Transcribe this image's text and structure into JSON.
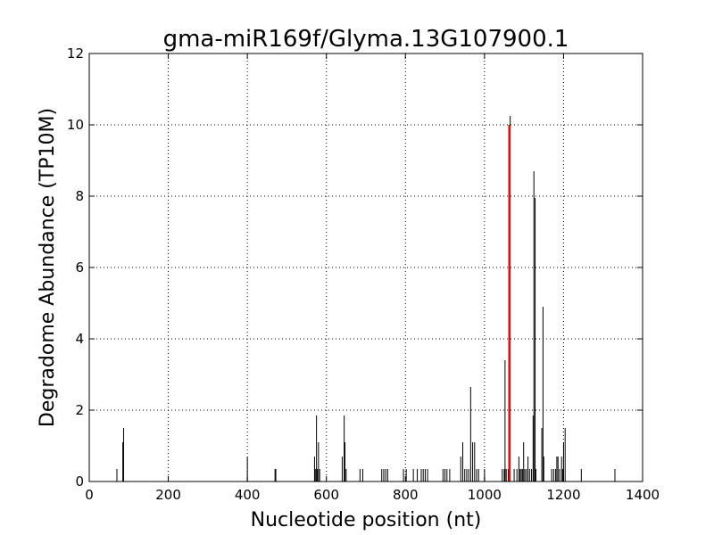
{
  "chart_data": {
    "type": "bar",
    "title": "gma-miR169f/Glyma.13G107900.1",
    "xlabel": "Nucleotide position (nt)",
    "ylabel": "Degradome Abundance (TP10M)",
    "xlim": [
      0,
      1400
    ],
    "ylim": [
      0,
      12
    ],
    "xticks": [
      0,
      200,
      400,
      600,
      800,
      1000,
      1200,
      1400
    ],
    "yticks": [
      0,
      2,
      4,
      6,
      8,
      10,
      12
    ],
    "grid": true,
    "bar_color": "#000000",
    "highlight_color": "#ff0000",
    "series": [
      {
        "x": [
          70,
          85,
          87,
          400,
          470,
          472,
          570,
          572,
          575,
          577,
          580,
          583,
          640,
          645,
          647,
          650,
          685,
          692,
          740,
          745,
          750,
          755,
          795,
          802,
          820,
          830,
          840,
          845,
          850,
          856,
          895,
          900,
          905,
          912,
          940,
          945,
          950,
          955,
          960,
          965,
          970,
          975,
          980,
          985,
          1000,
          1045,
          1050,
          1052,
          1055,
          1060,
          1065,
          1075,
          1082,
          1087,
          1090,
          1093,
          1096,
          1099,
          1102,
          1106,
          1110,
          1114,
          1119,
          1123,
          1125,
          1128,
          1130,
          1145,
          1148,
          1150,
          1170,
          1175,
          1180,
          1183,
          1186,
          1190,
          1195,
          1198,
          1200,
          1204,
          1245,
          1330
        ],
        "values": [
          0.35,
          1.1,
          1.5,
          0.7,
          0.35,
          0.35,
          0.7,
          0.35,
          1.85,
          0.35,
          1.1,
          0.35,
          0.7,
          1.85,
          1.1,
          0.35,
          0.35,
          0.35,
          0.35,
          0.35,
          0.35,
          0.35,
          0.35,
          0.35,
          0.35,
          0.35,
          0.35,
          0.35,
          0.35,
          0.35,
          0.35,
          0.35,
          0.35,
          0.35,
          0.7,
          1.1,
          0.35,
          0.35,
          0.35,
          2.65,
          1.1,
          1.1,
          0.35,
          0.35,
          0.35,
          0.35,
          0.35,
          3.4,
          0.35,
          0.35,
          10.25,
          0.35,
          0.35,
          0.7,
          0.35,
          0.35,
          0.35,
          1.1,
          0.35,
          0.35,
          0.7,
          0.35,
          0.35,
          1.85,
          8.7,
          7.95,
          0.35,
          1.5,
          4.9,
          0.7,
          0.35,
          0.35,
          0.35,
          0.7,
          0.7,
          0.35,
          0.7,
          0.35,
          1.1,
          1.5,
          0.35,
          0.35
        ]
      }
    ],
    "highlight": {
      "x": 1063,
      "value": 10.0
    }
  }
}
